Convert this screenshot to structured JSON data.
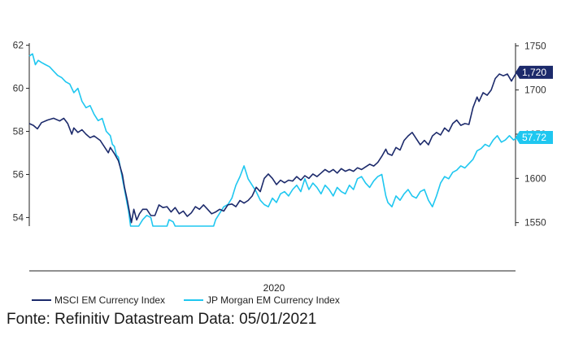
{
  "caption": "Fonte: Refinitiv Datastream Data: 05/01/2021",
  "colors": {
    "msci": "#1c2a6b",
    "jpm": "#1fc7f0",
    "axis": "#222222"
  },
  "chart_data": {
    "type": "line",
    "xlabel": "2020",
    "x_range": [
      0,
      12
    ],
    "y_left": {
      "ticks": [
        54,
        56,
        58,
        60,
        62
      ],
      "range": [
        53.6,
        62.1
      ]
    },
    "y_right": {
      "ticks": [
        1550,
        1600,
        1650,
        1700,
        1750
      ],
      "range": [
        1546,
        1753
      ]
    },
    "series": [
      {
        "name": "MSCI EM Currency Index",
        "axis": "right",
        "end_label": "1,720",
        "points": [
          [
            0.0,
            1662
          ],
          [
            0.1,
            1660
          ],
          [
            0.2,
            1656
          ],
          [
            0.3,
            1663
          ],
          [
            0.45,
            1666
          ],
          [
            0.6,
            1668
          ],
          [
            0.75,
            1665
          ],
          [
            0.85,
            1668
          ],
          [
            0.95,
            1662
          ],
          [
            1.05,
            1650
          ],
          [
            1.1,
            1657
          ],
          [
            1.2,
            1652
          ],
          [
            1.3,
            1655
          ],
          [
            1.4,
            1650
          ],
          [
            1.5,
            1646
          ],
          [
            1.6,
            1648
          ],
          [
            1.75,
            1643
          ],
          [
            1.85,
            1636
          ],
          [
            1.95,
            1629
          ],
          [
            2.0,
            1635
          ],
          [
            2.1,
            1628
          ],
          [
            2.2,
            1620
          ],
          [
            2.3,
            1604
          ],
          [
            2.35,
            1590
          ],
          [
            2.42,
            1575
          ],
          [
            2.48,
            1560
          ],
          [
            2.52,
            1550
          ],
          [
            2.58,
            1565
          ],
          [
            2.65,
            1553
          ],
          [
            2.72,
            1560
          ],
          [
            2.8,
            1565
          ],
          [
            2.9,
            1565
          ],
          [
            3.0,
            1558
          ],
          [
            3.1,
            1558
          ],
          [
            3.2,
            1570
          ],
          [
            3.3,
            1567
          ],
          [
            3.4,
            1568
          ],
          [
            3.5,
            1562
          ],
          [
            3.6,
            1567
          ],
          [
            3.7,
            1560
          ],
          [
            3.8,
            1563
          ],
          [
            3.9,
            1557
          ],
          [
            4.0,
            1561
          ],
          [
            4.1,
            1568
          ],
          [
            4.2,
            1565
          ],
          [
            4.3,
            1570
          ],
          [
            4.4,
            1565
          ],
          [
            4.5,
            1560
          ],
          [
            4.6,
            1562
          ],
          [
            4.7,
            1565
          ],
          [
            4.8,
            1563
          ],
          [
            4.9,
            1570
          ],
          [
            5.0,
            1571
          ],
          [
            5.1,
            1568
          ],
          [
            5.2,
            1575
          ],
          [
            5.3,
            1572
          ],
          [
            5.4,
            1575
          ],
          [
            5.5,
            1580
          ],
          [
            5.6,
            1590
          ],
          [
            5.7,
            1585
          ],
          [
            5.8,
            1600
          ],
          [
            5.9,
            1605
          ],
          [
            6.0,
            1600
          ],
          [
            6.1,
            1593
          ],
          [
            6.2,
            1598
          ],
          [
            6.3,
            1595
          ],
          [
            6.4,
            1598
          ],
          [
            6.5,
            1597
          ],
          [
            6.6,
            1602
          ],
          [
            6.7,
            1598
          ],
          [
            6.8,
            1603
          ],
          [
            6.9,
            1600
          ],
          [
            7.0,
            1605
          ],
          [
            7.1,
            1602
          ],
          [
            7.2,
            1606
          ],
          [
            7.3,
            1610
          ],
          [
            7.4,
            1607
          ],
          [
            7.5,
            1610
          ],
          [
            7.6,
            1606
          ],
          [
            7.7,
            1611
          ],
          [
            7.8,
            1608
          ],
          [
            7.9,
            1610
          ],
          [
            8.0,
            1608
          ],
          [
            8.1,
            1612
          ],
          [
            8.2,
            1610
          ],
          [
            8.3,
            1613
          ],
          [
            8.4,
            1616
          ],
          [
            8.5,
            1614
          ],
          [
            8.6,
            1618
          ],
          [
            8.7,
            1625
          ],
          [
            8.8,
            1633
          ],
          [
            8.85,
            1628
          ],
          [
            8.95,
            1626
          ],
          [
            9.05,
            1635
          ],
          [
            9.15,
            1632
          ],
          [
            9.25,
            1643
          ],
          [
            9.35,
            1648
          ],
          [
            9.45,
            1652
          ],
          [
            9.55,
            1645
          ],
          [
            9.65,
            1638
          ],
          [
            9.75,
            1643
          ],
          [
            9.85,
            1638
          ],
          [
            9.95,
            1648
          ],
          [
            10.05,
            1652
          ],
          [
            10.15,
            1649
          ],
          [
            10.25,
            1657
          ],
          [
            10.35,
            1653
          ],
          [
            10.45,
            1662
          ],
          [
            10.55,
            1666
          ],
          [
            10.65,
            1660
          ],
          [
            10.75,
            1662
          ],
          [
            10.85,
            1661
          ],
          [
            10.95,
            1680
          ],
          [
            11.0,
            1686
          ],
          [
            11.05,
            1692
          ],
          [
            11.1,
            1687
          ],
          [
            11.2,
            1697
          ],
          [
            11.3,
            1694
          ],
          [
            11.4,
            1700
          ],
          [
            11.5,
            1713
          ],
          [
            11.6,
            1718
          ],
          [
            11.7,
            1716
          ],
          [
            11.8,
            1718
          ],
          [
            11.9,
            1710
          ],
          [
            12.0,
            1718
          ],
          [
            12.05,
            1720
          ]
        ]
      },
      {
        "name": "JP Morgan EM Currency Index",
        "axis": "left",
        "end_label": "57.72",
        "points": [
          [
            0.0,
            61.5
          ],
          [
            0.08,
            61.6
          ],
          [
            0.15,
            61.1
          ],
          [
            0.22,
            61.3
          ],
          [
            0.3,
            61.2
          ],
          [
            0.4,
            61.1
          ],
          [
            0.5,
            61.0
          ],
          [
            0.6,
            60.8
          ],
          [
            0.7,
            60.6
          ],
          [
            0.8,
            60.5
          ],
          [
            0.9,
            60.3
          ],
          [
            1.0,
            60.2
          ],
          [
            1.1,
            59.8
          ],
          [
            1.2,
            60.0
          ],
          [
            1.3,
            59.4
          ],
          [
            1.4,
            59.1
          ],
          [
            1.5,
            59.2
          ],
          [
            1.6,
            58.8
          ],
          [
            1.7,
            58.5
          ],
          [
            1.8,
            58.6
          ],
          [
            1.9,
            58.0
          ],
          [
            2.0,
            57.8
          ],
          [
            2.05,
            57.4
          ],
          [
            2.1,
            57.3
          ],
          [
            2.15,
            56.9
          ],
          [
            2.2,
            56.8
          ],
          [
            2.25,
            56.3
          ],
          [
            2.3,
            55.8
          ],
          [
            2.35,
            55.3
          ],
          [
            2.4,
            54.8
          ],
          [
            2.45,
            54.3
          ],
          [
            2.5,
            53.6
          ],
          [
            2.62,
            53.6
          ],
          [
            2.7,
            53.6
          ],
          [
            2.8,
            53.9
          ],
          [
            2.9,
            54.1
          ],
          [
            3.0,
            54.0
          ],
          [
            3.05,
            53.6
          ],
          [
            3.35,
            53.6
          ],
          [
            3.4,
            53.6
          ],
          [
            3.45,
            53.9
          ],
          [
            3.55,
            53.8
          ],
          [
            3.6,
            53.6
          ],
          [
            4.55,
            53.6
          ],
          [
            4.6,
            53.9
          ],
          [
            4.7,
            54.2
          ],
          [
            4.8,
            54.5
          ],
          [
            4.9,
            54.6
          ],
          [
            5.0,
            54.9
          ],
          [
            5.1,
            55.5
          ],
          [
            5.2,
            55.9
          ],
          [
            5.3,
            56.4
          ],
          [
            5.35,
            56.1
          ],
          [
            5.4,
            55.8
          ],
          [
            5.5,
            55.5
          ],
          [
            5.6,
            55.2
          ],
          [
            5.7,
            54.8
          ],
          [
            5.8,
            54.6
          ],
          [
            5.9,
            54.5
          ],
          [
            6.0,
            54.9
          ],
          [
            6.1,
            54.7
          ],
          [
            6.2,
            55.1
          ],
          [
            6.3,
            55.2
          ],
          [
            6.4,
            55.0
          ],
          [
            6.5,
            55.3
          ],
          [
            6.6,
            55.5
          ],
          [
            6.7,
            55.2
          ],
          [
            6.8,
            55.8
          ],
          [
            6.9,
            55.3
          ],
          [
            7.0,
            55.6
          ],
          [
            7.1,
            55.4
          ],
          [
            7.2,
            55.1
          ],
          [
            7.3,
            55.5
          ],
          [
            7.4,
            55.3
          ],
          [
            7.5,
            55.0
          ],
          [
            7.6,
            55.4
          ],
          [
            7.7,
            55.2
          ],
          [
            7.8,
            55.1
          ],
          [
            7.9,
            55.5
          ],
          [
            8.0,
            55.3
          ],
          [
            8.1,
            55.8
          ],
          [
            8.2,
            55.9
          ],
          [
            8.3,
            55.6
          ],
          [
            8.4,
            55.4
          ],
          [
            8.5,
            55.7
          ],
          [
            8.6,
            55.9
          ],
          [
            8.7,
            56.0
          ],
          [
            8.75,
            55.5
          ],
          [
            8.8,
            55.0
          ],
          [
            8.85,
            54.7
          ],
          [
            8.95,
            54.5
          ],
          [
            9.05,
            55.0
          ],
          [
            9.15,
            54.8
          ],
          [
            9.25,
            55.1
          ],
          [
            9.35,
            55.3
          ],
          [
            9.45,
            55.0
          ],
          [
            9.55,
            54.9
          ],
          [
            9.65,
            55.2
          ],
          [
            9.75,
            55.3
          ],
          [
            9.85,
            54.8
          ],
          [
            9.95,
            54.5
          ],
          [
            10.05,
            55.0
          ],
          [
            10.15,
            55.6
          ],
          [
            10.25,
            55.9
          ],
          [
            10.35,
            55.8
          ],
          [
            10.45,
            56.1
          ],
          [
            10.55,
            56.2
          ],
          [
            10.65,
            56.4
          ],
          [
            10.75,
            56.3
          ],
          [
            10.85,
            56.5
          ],
          [
            10.95,
            56.7
          ],
          [
            11.05,
            57.1
          ],
          [
            11.15,
            57.2
          ],
          [
            11.25,
            57.4
          ],
          [
            11.35,
            57.3
          ],
          [
            11.45,
            57.6
          ],
          [
            11.55,
            57.8
          ],
          [
            11.65,
            57.5
          ],
          [
            11.75,
            57.6
          ],
          [
            11.85,
            57.8
          ],
          [
            11.95,
            57.6
          ],
          [
            12.05,
            57.72
          ]
        ]
      }
    ]
  }
}
